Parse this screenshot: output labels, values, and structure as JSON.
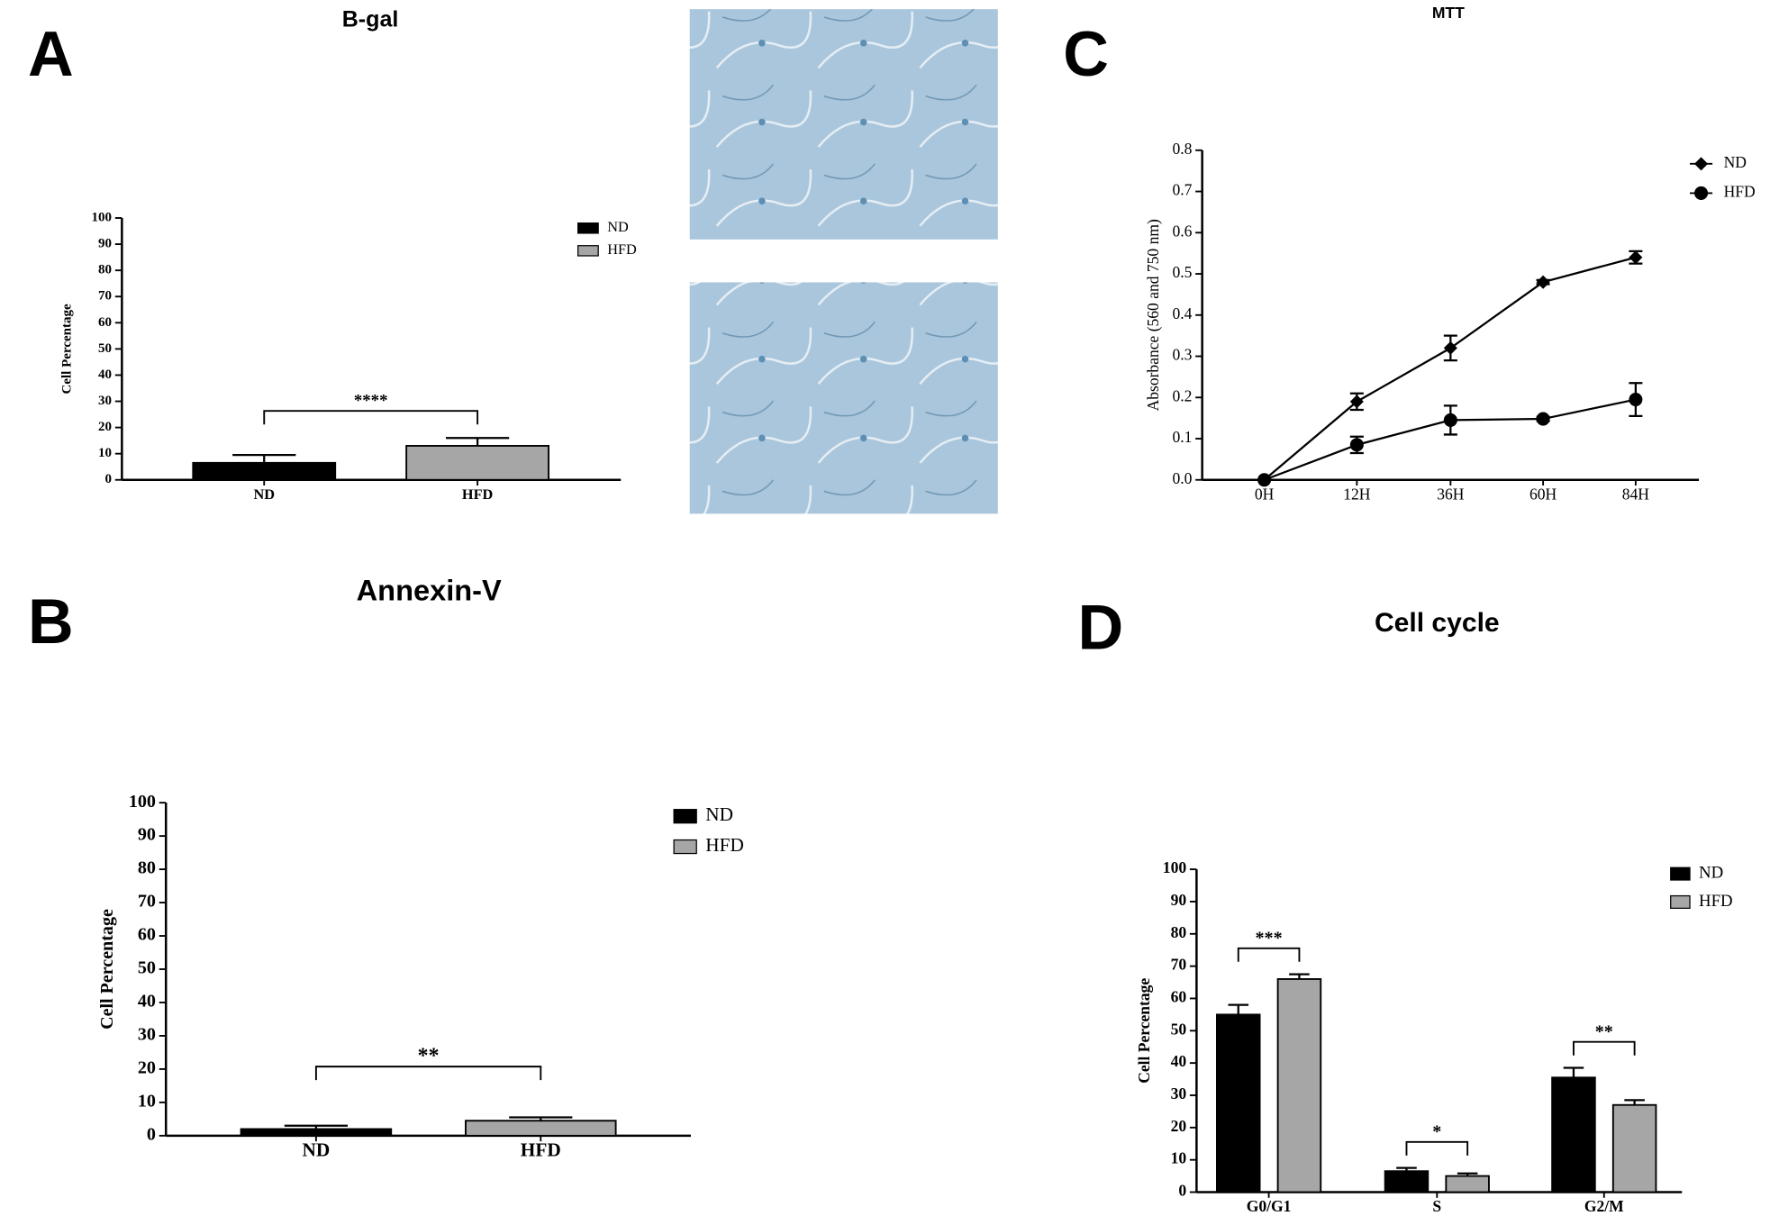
{
  "chart_data": [
    {
      "type": "bar",
      "panel": "A",
      "title": "B-gal",
      "y_label": "Cell Percentage",
      "categories": [
        "ND",
        "HFD"
      ],
      "values": [
        6.5,
        13
      ],
      "errors": [
        3,
        3
      ],
      "series": [
        {
          "name": "ND",
          "color": "#000000"
        },
        {
          "name": "HFD",
          "color": "#a6a6a6"
        }
      ],
      "significance": [
        "****"
      ],
      "ylim": [
        0,
        100
      ],
      "yticks": [
        0,
        10,
        20,
        30,
        40,
        50,
        60,
        70,
        80,
        90,
        100
      ]
    },
    {
      "type": "bar",
      "panel": "B",
      "title": "Annexin-V",
      "y_label": "Cell Percentage",
      "categories": [
        "ND",
        "HFD"
      ],
      "values": [
        2,
        4.5
      ],
      "errors": [
        1,
        1
      ],
      "series": [
        {
          "name": "ND",
          "color": "#000000"
        },
        {
          "name": "HFD",
          "color": "#a6a6a6"
        }
      ],
      "significance": [
        "**"
      ],
      "ylim": [
        0,
        100
      ],
      "yticks": [
        0,
        10,
        20,
        30,
        40,
        50,
        60,
        70,
        80,
        90,
        100
      ]
    },
    {
      "type": "line",
      "panel": "C",
      "title": "MTT",
      "y_label": "Absorbance (560 and 750 nm)",
      "categories": [
        "0H",
        "12H",
        "36H",
        "60H",
        "84H"
      ],
      "series": [
        {
          "name": "ND",
          "color": "#000000",
          "marker": "diamond",
          "values": [
            0,
            0.19,
            0.32,
            0.48,
            0.54
          ],
          "errors": [
            0,
            0.02,
            0.03,
            0.005,
            0.015
          ]
        },
        {
          "name": "HFD",
          "color": "#000000",
          "marker": "circle",
          "values": [
            0,
            0.085,
            0.145,
            0.148,
            0.195
          ],
          "errors": [
            0,
            0.02,
            0.035,
            0.005,
            0.04
          ]
        }
      ],
      "ylim": [
        0,
        0.8
      ],
      "yticks": [
        {
          "value": 0,
          "label": "0.0"
        },
        0.1,
        0.2,
        0.3,
        0.4,
        0.5,
        0.6,
        0.7,
        0.8
      ]
    },
    {
      "type": "grouped_bar",
      "panel": "D",
      "title": "Cell cycle",
      "y_label": "Cell Percentage",
      "categories": [
        "G0/G1",
        "S",
        "G2/M"
      ],
      "series": [
        {
          "name": "ND",
          "color": "#000000",
          "values": [
            55,
            6.5,
            35.5
          ],
          "errors": [
            3,
            1,
            3
          ]
        },
        {
          "name": "HFD",
          "color": "#a6a6a6",
          "values": [
            66,
            5,
            27
          ],
          "errors": [
            1.5,
            0.8,
            1.5
          ]
        }
      ],
      "significance": [
        "***",
        "*",
        "**"
      ],
      "ylim": [
        0,
        100
      ],
      "yticks": [
        0,
        10,
        20,
        30,
        40,
        50,
        60,
        70,
        80,
        90,
        100
      ]
    }
  ]
}
